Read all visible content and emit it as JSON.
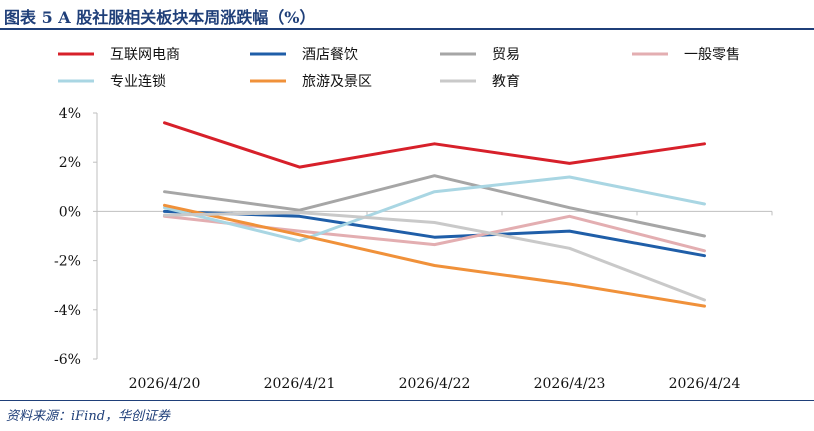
{
  "header": {
    "title": "图表 5 A 股社服相关板块本周涨跌幅（%）"
  },
  "footer": {
    "source": "资料来源：iFind，华创证券"
  },
  "chart_data": {
    "type": "line",
    "title": "图表 5 A 股社服相关板块本周涨跌幅（%）",
    "xlabel": "",
    "ylabel": "",
    "x": [
      "2026/4/20",
      "2026/4/21",
      "2026/4/22",
      "2026/4/23",
      "2026/4/24"
    ],
    "ylim": [
      -6,
      4
    ],
    "yticks": [
      4,
      2,
      0,
      -2,
      -4,
      -6
    ],
    "ytick_labels": [
      "4%",
      "2%",
      "0%",
      "-2%",
      "-4%",
      "-6%"
    ],
    "unit": "%",
    "legend_position": "top",
    "grid": false,
    "series": [
      {
        "name": "互联网电商",
        "color": "#d7202a",
        "values": [
          3.6,
          1.8,
          2.75,
          1.95,
          2.75
        ]
      },
      {
        "name": "酒店餐饮",
        "color": "#1f5ea8",
        "values": [
          0.0,
          -0.2,
          -1.05,
          -0.8,
          -1.8
        ]
      },
      {
        "name": "贸易",
        "color": "#a6a6a6",
        "values": [
          0.8,
          0.05,
          1.45,
          0.15,
          -1.0
        ]
      },
      {
        "name": "一般零售",
        "color": "#e3aeb1",
        "values": [
          -0.2,
          -0.8,
          -1.35,
          -0.2,
          -1.6
        ]
      },
      {
        "name": "专业连锁",
        "color": "#a9d6e3",
        "values": [
          0.15,
          -1.2,
          0.8,
          1.4,
          0.3
        ]
      },
      {
        "name": "旅游及景区",
        "color": "#f0913a",
        "values": [
          0.25,
          -0.95,
          -2.2,
          -2.95,
          -3.85
        ]
      },
      {
        "name": "教育",
        "color": "#c9c9c9",
        "values": [
          -0.15,
          -0.05,
          -0.45,
          -1.5,
          -3.6
        ]
      }
    ]
  }
}
